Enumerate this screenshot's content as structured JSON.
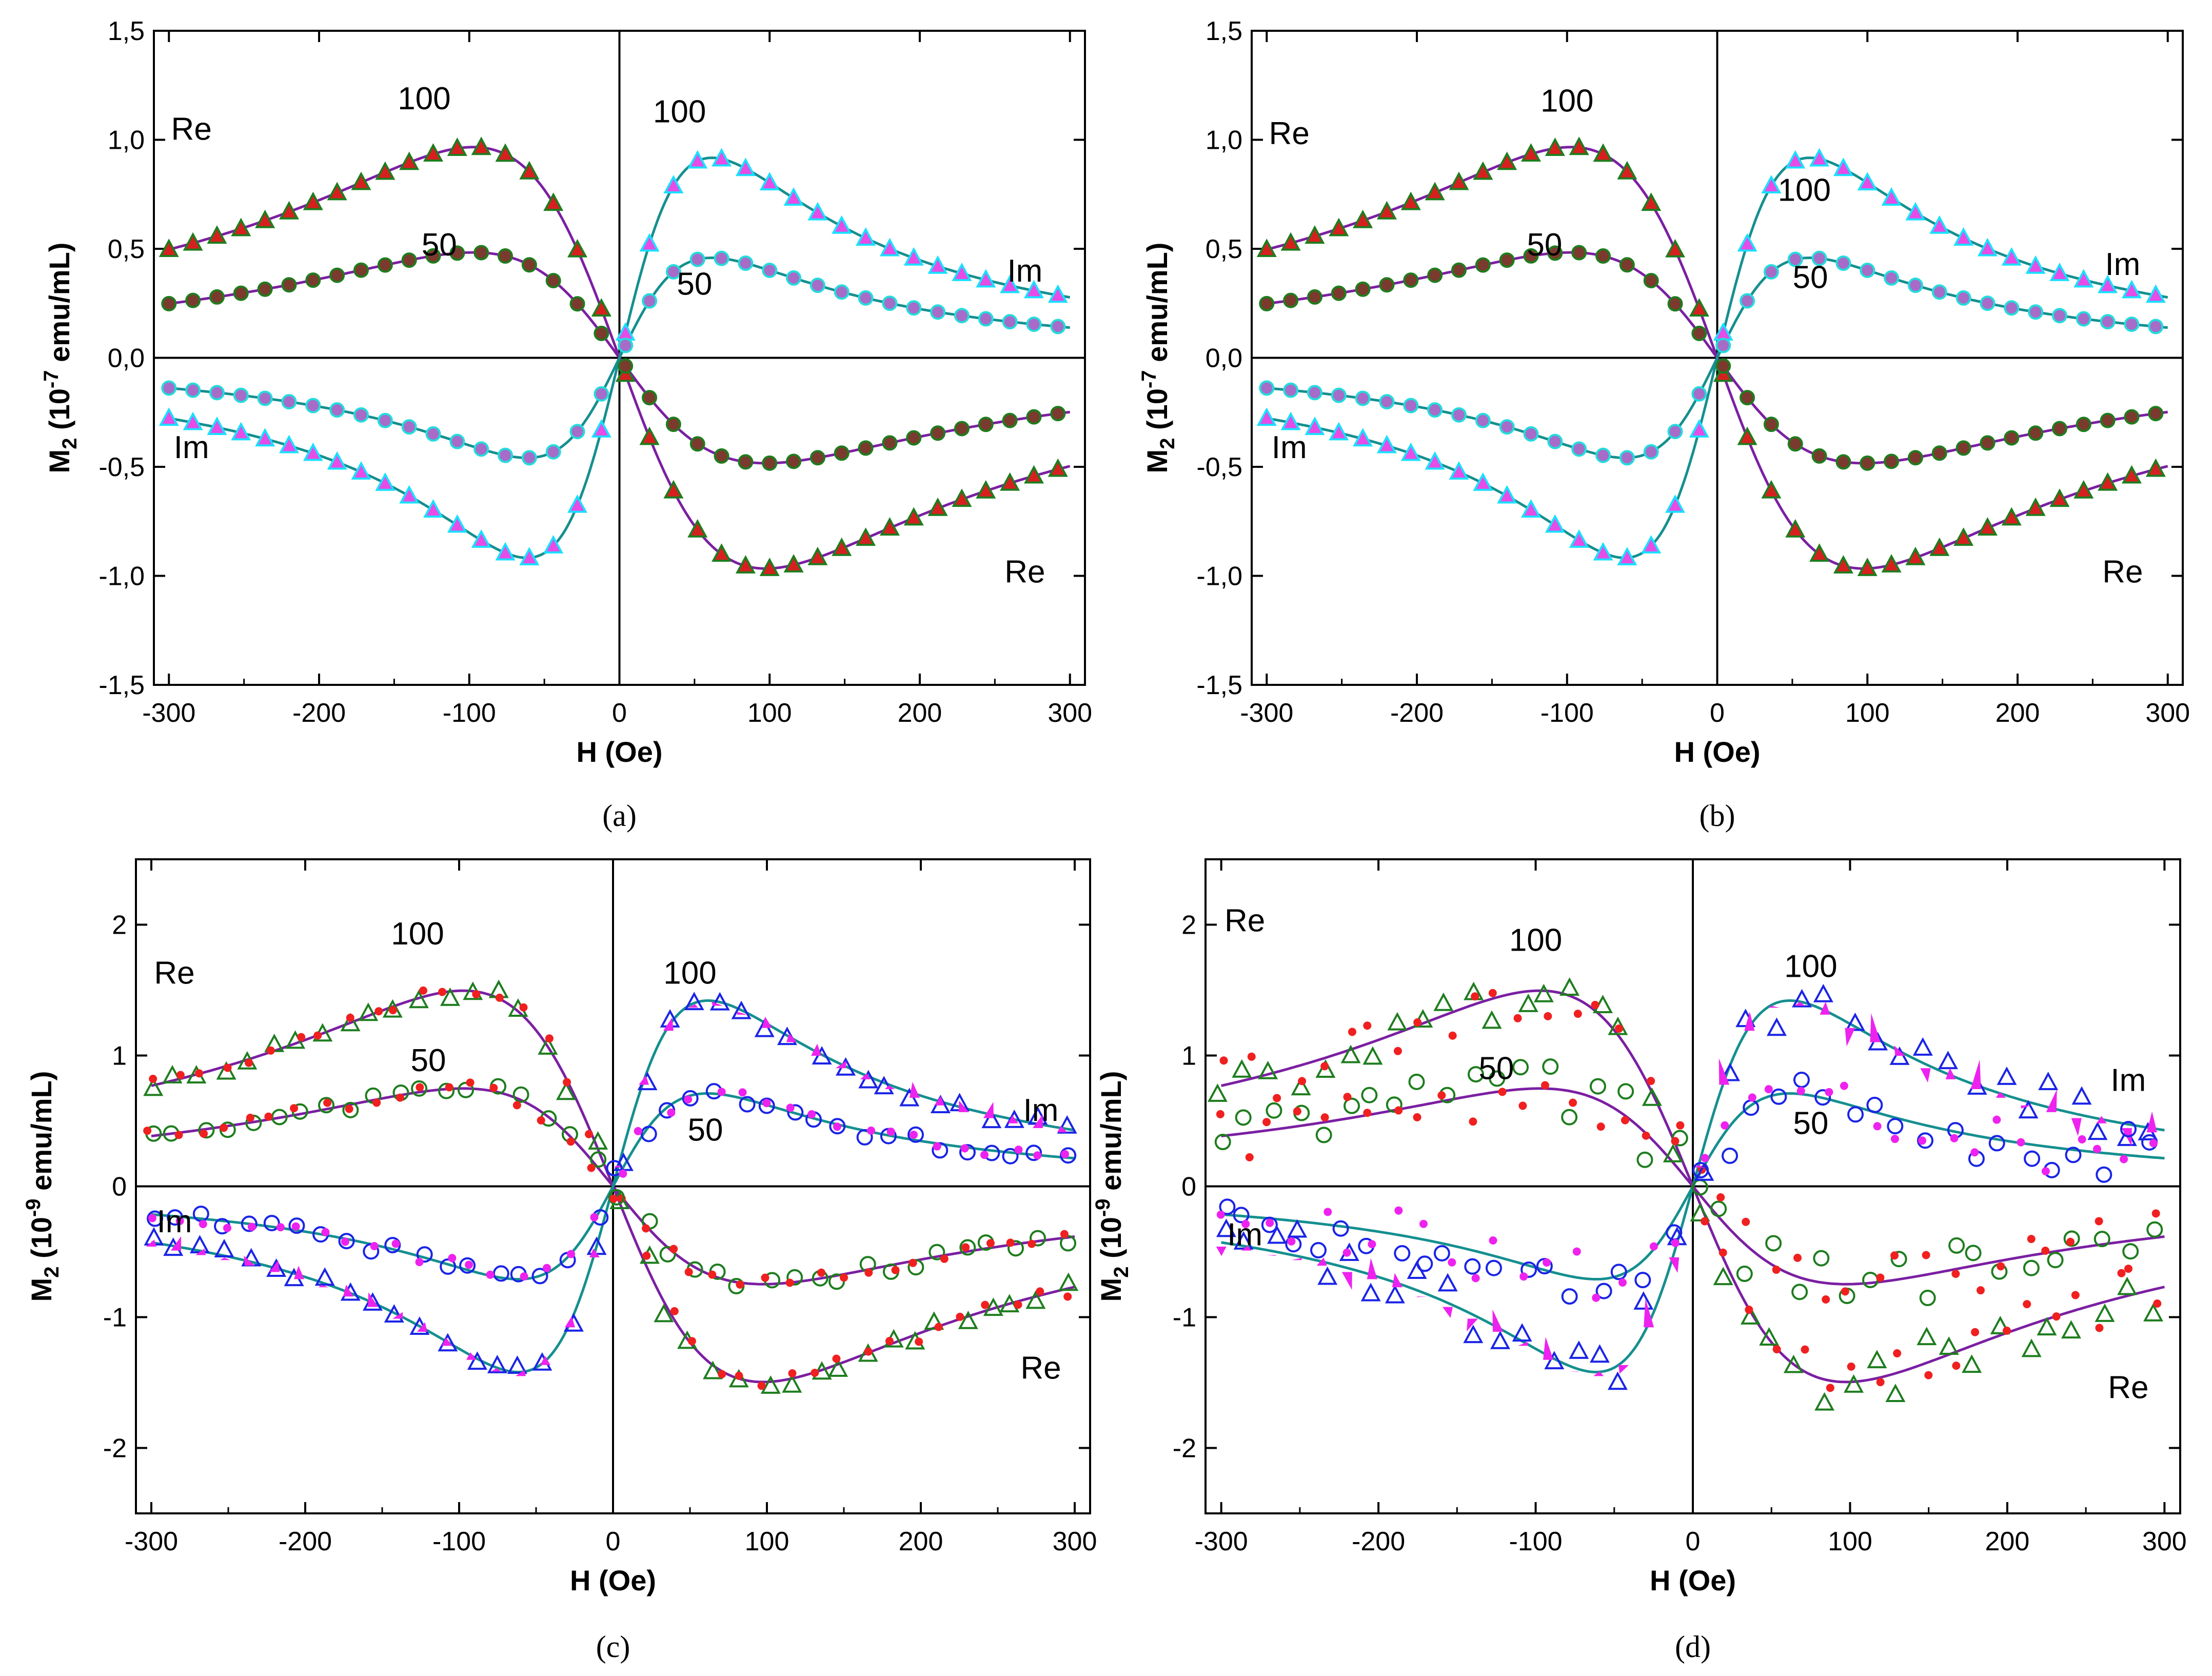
{
  "colors": {
    "fit_re": "#7b1fa2",
    "fit_im": "#158f8f",
    "re_triangle_fill": "#d62020",
    "re_triangle_edge": "#1e7d1e",
    "im_triangle_fill": "#e64ce6",
    "im_triangle_edge": "#18e0ff",
    "red_dot": "#f02020",
    "green_circle": "#1e7d1e",
    "magenta": "#ee22ee",
    "cyan": "#22dddd",
    "blue": "#1a24e6"
  },
  "chart_data": [
    {
      "panel": "(a)",
      "type": "scatter",
      "title": "",
      "xlabel": "H  (Oe)",
      "ylabel_main": "M",
      "ylabel_sub": "2",
      "ylabel_open": " (10",
      "ylabel_exp": "-7",
      "ylabel_units": " emu/mL)",
      "xlim": [
        -310,
        310
      ],
      "ylim": [
        -1.5,
        1.5
      ],
      "xticks": [
        -300,
        -200,
        -100,
        0,
        100,
        200,
        300
      ],
      "xtick_labels": [
        "-300",
        "-200",
        "-100",
        "0",
        "100",
        "200",
        "300"
      ],
      "yticks": [
        -1.5,
        -1.0,
        -0.5,
        0.0,
        0.5,
        1.0,
        1.5
      ],
      "ytick_labels": [
        "-1,5",
        "-1,0",
        "-0,5",
        "0,0",
        "0,5",
        "1,0",
        "1,5"
      ],
      "grid": false,
      "scale": 1.37,
      "style": "overlaid",
      "fit_lines": [
        {
          "name": "Re 100 Oe",
          "kind": "re",
          "amplitude": 100
        },
        {
          "name": "Re 50 Oe",
          "kind": "re",
          "amplitude": 50
        },
        {
          "name": "Im 100 Oe",
          "kind": "im",
          "amplitude": 100
        },
        {
          "name": "Im 50 Oe",
          "kind": "im",
          "amplitude": 50
        }
      ],
      "annotations": [
        {
          "text": "Re",
          "x": -285,
          "y": 1.0
        },
        {
          "text": "100",
          "x": -130,
          "y": 1.14
        },
        {
          "text": "50",
          "x": -120,
          "y": 0.47
        },
        {
          "text": "100",
          "x": 40,
          "y": 1.08
        },
        {
          "text": "50",
          "x": 50,
          "y": 0.29
        },
        {
          "text": "Im",
          "x": 270,
          "y": 0.35
        },
        {
          "text": "Im",
          "x": -285,
          "y": -0.46
        },
        {
          "text": "Re",
          "x": 270,
          "y": -1.03
        }
      ],
      "caption": "(a)"
    },
    {
      "panel": "(b)",
      "type": "scatter",
      "title": "",
      "xlabel": "H  (Oe)",
      "ylabel_main": "M",
      "ylabel_sub": "2",
      "ylabel_open": " (10",
      "ylabel_exp": "-7",
      "ylabel_units": " emu/mL)",
      "xlim": [
        -310,
        310
      ],
      "ylim": [
        -1.5,
        1.5
      ],
      "xticks": [
        -300,
        -200,
        -100,
        0,
        100,
        200,
        300
      ],
      "xtick_labels": [
        "-300",
        "-200",
        "-100",
        "0",
        "100",
        "200",
        "300"
      ],
      "yticks": [
        -1.5,
        -1.0,
        -0.5,
        0.0,
        0.5,
        1.0,
        1.5
      ],
      "ytick_labels": [
        "-1,5",
        "-1,0",
        "-0,5",
        "0,0",
        "0,5",
        "1,0",
        "1,5"
      ],
      "grid": false,
      "scale": 1.37,
      "style": "overlaid",
      "fit_lines": [
        {
          "name": "Re 100 Oe",
          "kind": "re",
          "amplitude": 100
        },
        {
          "name": "Re 50 Oe",
          "kind": "re",
          "amplitude": 50
        },
        {
          "name": "Im 100 Oe",
          "kind": "im",
          "amplitude": 100
        },
        {
          "name": "Im 50 Oe",
          "kind": "im",
          "amplitude": 50
        }
      ],
      "annotations": [
        {
          "text": "Re",
          "x": -285,
          "y": 0.98
        },
        {
          "text": "100",
          "x": -100,
          "y": 1.13
        },
        {
          "text": "50",
          "x": -115,
          "y": 0.47
        },
        {
          "text": "100",
          "x": 58,
          "y": 0.72
        },
        {
          "text": "50",
          "x": 62,
          "y": 0.32
        },
        {
          "text": "Im",
          "x": 270,
          "y": 0.38
        },
        {
          "text": "Im",
          "x": -285,
          "y": -0.46
        },
        {
          "text": "Re",
          "x": 270,
          "y": -1.03
        }
      ],
      "caption": "(b)"
    },
    {
      "panel": "(c)",
      "type": "scatter",
      "title": "",
      "xlabel": "H (Oe)",
      "ylabel_main": "M",
      "ylabel_sub": "2",
      "ylabel_open": " (10",
      "ylabel_exp": "-9",
      "ylabel_units": " emu/mL)",
      "xlim": [
        -310,
        310
      ],
      "ylim": [
        -2.5,
        2.5
      ],
      "xticks": [
        -300,
        -200,
        -100,
        0,
        100,
        200,
        300
      ],
      "xtick_labels": [
        "-300",
        "-200",
        "-100",
        "0",
        "100",
        "200",
        "300"
      ],
      "yticks": [
        -2,
        -1,
        0,
        1,
        2
      ],
      "ytick_labels": [
        "-2",
        "-1",
        "0",
        "1",
        "2"
      ],
      "grid": false,
      "scale": 2.12,
      "style": "scattered",
      "noise": 0.05,
      "fit_lines": [
        {
          "name": "Re 100 Oe",
          "kind": "re",
          "amplitude": 100
        },
        {
          "name": "Re 50 Oe",
          "kind": "re",
          "amplitude": 50
        },
        {
          "name": "Im 100 Oe",
          "kind": "im",
          "amplitude": 100
        },
        {
          "name": "Im 50 Oe",
          "kind": "im",
          "amplitude": 50
        }
      ],
      "annotations": [
        {
          "text": "Re",
          "x": -285,
          "y": 1.55
        },
        {
          "text": "100",
          "x": -127,
          "y": 1.85
        },
        {
          "text": "50",
          "x": -120,
          "y": 0.88
        },
        {
          "text": "100",
          "x": 50,
          "y": 1.55
        },
        {
          "text": "50",
          "x": 60,
          "y": 0.35
        },
        {
          "text": "Im",
          "x": 278,
          "y": 0.5
        },
        {
          "text": "Im",
          "x": -285,
          "y": -0.35
        },
        {
          "text": "Re",
          "x": 278,
          "y": -1.47
        }
      ],
      "caption": "(c)"
    },
    {
      "panel": "(d)",
      "type": "scatter",
      "title": "",
      "xlabel": "H  (Oe)",
      "ylabel_main": "M",
      "ylabel_sub": "2",
      "ylabel_open": " (10",
      "ylabel_exp": "-9",
      "ylabel_units": " emu/mL)",
      "xlim": [
        -310,
        310
      ],
      "ylim": [
        -2.5,
        2.5
      ],
      "xticks": [
        -300,
        -200,
        -100,
        0,
        100,
        200,
        300
      ],
      "xtick_labels": [
        "-300",
        "-200",
        "-100",
        "0",
        "100",
        "200",
        "300"
      ],
      "yticks": [
        -2,
        -1,
        0,
        1,
        2
      ],
      "ytick_labels": [
        "-2",
        "-1",
        "0",
        "1",
        "2"
      ],
      "grid": false,
      "scale": 2.12,
      "style": "scattered",
      "noise": 0.2,
      "fit_lines": [
        {
          "name": "Re 100 Oe",
          "kind": "re",
          "amplitude": 100
        },
        {
          "name": "Re 50 Oe",
          "kind": "re",
          "amplitude": 50
        },
        {
          "name": "Im 100 Oe",
          "kind": "im",
          "amplitude": 100
        },
        {
          "name": "Im 50 Oe",
          "kind": "im",
          "amplitude": 50
        }
      ],
      "annotations": [
        {
          "text": "Re",
          "x": -285,
          "y": 1.95
        },
        {
          "text": "100",
          "x": -100,
          "y": 1.8
        },
        {
          "text": "50",
          "x": -125,
          "y": 0.82
        },
        {
          "text": "100",
          "x": 75,
          "y": 1.6
        },
        {
          "text": "50",
          "x": 75,
          "y": 0.4
        },
        {
          "text": "Im",
          "x": 277,
          "y": 0.73
        },
        {
          "text": "Im",
          "x": -285,
          "y": -0.45
        },
        {
          "text": "Re",
          "x": 277,
          "y": -1.62
        }
      ],
      "caption": "(d)"
    }
  ]
}
